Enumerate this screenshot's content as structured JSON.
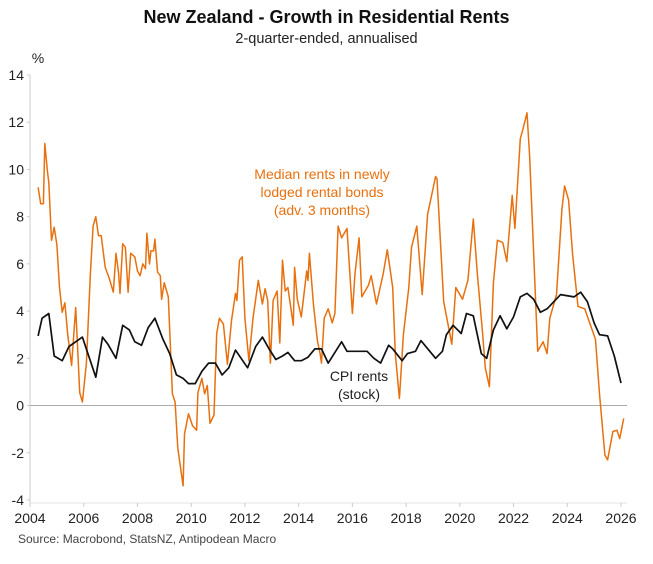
{
  "chart_data": {
    "type": "line",
    "title": "New Zealand - Growth in Residential Rents",
    "subtitle": "2-quarter-ended, annualised",
    "ylabel": "%",
    "xlabel": "",
    "source": "Source: Macrobond, StatsNZ, Antipodean Macro",
    "xlim": [
      2004,
      2026
    ],
    "ylim": [
      -4,
      14
    ],
    "x_ticks": [
      "2004",
      "2006",
      "2008",
      "2010",
      "2012",
      "2014",
      "2016",
      "2018",
      "2020",
      "2022",
      "2024",
      "2026"
    ],
    "y_ticks": [
      "-4",
      "-2",
      "0",
      "2",
      "4",
      "6",
      "8",
      "10",
      "12",
      "14"
    ],
    "grid": false,
    "zero_line": true,
    "colors": {
      "median_rents": "#E8700E",
      "cpi_rents": "#111111",
      "zero_line": "#AAAAAA"
    },
    "annotations": {
      "median_rents": [
        "Median rents in newly",
        "lodged rental bonds",
        "(adv. 3 months)"
      ],
      "cpi_rents": [
        "CPI rents",
        "(stock)"
      ]
    },
    "series": [
      {
        "name": "Median rents in newly lodged rental bonds (adv. 3 months)",
        "x": [
          2004.3,
          2004.4,
          2004.5,
          2004.55,
          2004.65,
          2004.7,
          2004.8,
          2004.9,
          2005.0,
          2005.1,
          2005.2,
          2005.3,
          2005.4,
          2005.55,
          2005.7,
          2005.75,
          2005.85,
          2005.95,
          2006.1,
          2006.25,
          2006.35,
          2006.45,
          2006.55,
          2006.65,
          2006.8,
          2006.95,
          2007.1,
          2007.2,
          2007.3,
          2007.35,
          2007.45,
          2007.55,
          2007.65,
          2007.75,
          2007.9,
          2008.0,
          2008.1,
          2008.2,
          2008.3,
          2008.35,
          2008.45,
          2008.5,
          2008.6,
          2008.65,
          2008.75,
          2008.85,
          2008.9,
          2009.0,
          2009.15,
          2009.3,
          2009.4,
          2009.5,
          2009.7,
          2009.75,
          2009.9,
          2010.05,
          2010.2,
          2010.25,
          2010.4,
          2010.5,
          2010.6,
          2010.7,
          2010.85,
          2010.95,
          2011.05,
          2011.2,
          2011.35,
          2011.5,
          2011.65,
          2011.7,
          2011.8,
          2011.9,
          2012.0,
          2012.15,
          2012.3,
          2012.5,
          2012.65,
          2012.75,
          2012.85,
          2012.95,
          2013.05,
          2013.2,
          2013.3,
          2013.4,
          2013.5,
          2013.6,
          2013.8,
          2013.85,
          2013.95,
          2014.1,
          2014.3,
          2014.35,
          2014.4,
          2014.55,
          2014.7,
          2014.8,
          2014.85,
          2014.95,
          2015.1,
          2015.25,
          2015.35,
          2015.47,
          2015.6,
          2015.8,
          2016.0,
          2016.1,
          2016.25,
          2016.35,
          2016.6,
          2016.7,
          2016.9,
          2017.15,
          2017.3,
          2017.5,
          2017.6,
          2017.75,
          2017.9,
          2018.1,
          2018.2,
          2018.4,
          2018.6,
          2018.8,
          2019.1,
          2019.15,
          2019.4,
          2019.7,
          2019.85,
          2020.1,
          2020.3,
          2020.5,
          2020.65,
          2020.85,
          2020.95,
          2021.1,
          2021.25,
          2021.4,
          2021.6,
          2021.75,
          2021.95,
          2022.05,
          2022.25,
          2022.35,
          2022.5,
          2022.6,
          2022.9,
          2023.1,
          2023.25,
          2023.35,
          2023.6,
          2023.8,
          2023.9,
          2024.05,
          2024.2,
          2024.4,
          2024.65,
          2025.05,
          2025.2,
          2025.4,
          2025.5,
          2025.7,
          2025.85,
          2025.95,
          2026.1
        ],
        "y": [
          9.25,
          8.55,
          8.55,
          11.1,
          9.9,
          9.45,
          7.0,
          7.55,
          6.8,
          5.0,
          3.95,
          4.35,
          3.05,
          1.7,
          4.15,
          3.0,
          0.55,
          0.15,
          1.8,
          5.6,
          7.6,
          8.0,
          7.2,
          7.2,
          5.85,
          5.4,
          4.8,
          6.45,
          5.6,
          4.75,
          6.85,
          6.7,
          4.8,
          6.45,
          6.3,
          5.7,
          5.5,
          6.0,
          5.8,
          7.3,
          6.0,
          6.55,
          6.55,
          7.05,
          5.65,
          5.5,
          4.5,
          5.2,
          4.6,
          0.5,
          0.15,
          -1.8,
          -3.4,
          -1.2,
          -0.35,
          -0.85,
          -1.05,
          0.55,
          1.15,
          0.5,
          0.85,
          -0.75,
          -0.4,
          3.05,
          3.7,
          3.45,
          1.75,
          3.6,
          4.75,
          4.45,
          6.15,
          6.3,
          3.7,
          1.9,
          3.7,
          5.3,
          4.3,
          4.95,
          4.45,
          1.8,
          4.45,
          4.85,
          2.65,
          6.15,
          4.85,
          5.0,
          3.4,
          5.85,
          4.5,
          3.75,
          5.7,
          5.3,
          6.45,
          4.3,
          2.75,
          2.2,
          1.8,
          3.7,
          4.1,
          3.5,
          3.9,
          7.6,
          7.1,
          7.5,
          3.9,
          5.6,
          7.1,
          4.6,
          5.1,
          5.5,
          4.3,
          5.6,
          6.6,
          5.0,
          2.2,
          0.3,
          3.0,
          5.0,
          6.7,
          7.6,
          4.7,
          8.1,
          9.7,
          9.6,
          4.4,
          2.6,
          5.0,
          4.5,
          5.3,
          7.9,
          5.6,
          3.0,
          1.6,
          0.8,
          5.2,
          7.0,
          6.9,
          6.1,
          8.9,
          7.5,
          11.3,
          11.7,
          12.4,
          10.5,
          2.3,
          2.7,
          2.2,
          3.7,
          4.7,
          8.3,
          9.3,
          8.7,
          6.4,
          4.2,
          4.1,
          2.8,
          0.5,
          -2.1,
          -2.3,
          -1.1,
          -1.05,
          -1.4,
          -0.55
        ]
      },
      {
        "name": "CPI rents (stock)",
        "x": [
          2004.3,
          2004.45,
          2004.7,
          2004.9,
          2005.2,
          2005.45,
          2005.95,
          2006.45,
          2006.7,
          2006.9,
          2007.2,
          2007.45,
          2007.7,
          2007.9,
          2008.15,
          2008.4,
          2008.65,
          2008.95,
          2009.2,
          2009.45,
          2009.7,
          2009.9,
          2010.15,
          2010.4,
          2010.65,
          2010.9,
          2011.15,
          2011.4,
          2011.65,
          2012.1,
          2012.4,
          2012.65,
          2012.9,
          2013.15,
          2013.4,
          2013.6,
          2013.85,
          2014.1,
          2014.35,
          2014.6,
          2014.85,
          2015.1,
          2015.6,
          2015.8,
          2016.55,
          2016.8,
          2017.05,
          2017.35,
          2017.5,
          2017.85,
          2018.05,
          2018.35,
          2018.55,
          2019.1,
          2019.35,
          2019.5,
          2019.75,
          2020.05,
          2020.25,
          2020.5,
          2020.8,
          2021.0,
          2021.25,
          2021.5,
          2021.75,
          2022.0,
          2022.25,
          2022.5,
          2022.75,
          2023.0,
          2023.25,
          2023.75,
          2024.25,
          2024.5,
          2024.75,
          2025.0,
          2025.2,
          2025.5,
          2025.75,
          2026.0
        ],
        "y": [
          2.95,
          3.7,
          3.9,
          2.1,
          1.9,
          2.5,
          2.9,
          1.2,
          2.9,
          2.6,
          2.0,
          3.4,
          3.2,
          2.7,
          2.55,
          3.3,
          3.7,
          2.8,
          2.2,
          1.3,
          1.15,
          0.93,
          0.93,
          1.45,
          1.8,
          1.8,
          1.3,
          1.6,
          2.35,
          1.6,
          2.5,
          2.9,
          2.4,
          1.95,
          2.1,
          2.25,
          1.9,
          1.9,
          2.05,
          2.4,
          2.4,
          1.8,
          2.7,
          2.3,
          2.3,
          2.0,
          1.8,
          2.55,
          2.4,
          1.9,
          2.2,
          2.3,
          2.75,
          2.0,
          2.3,
          3.0,
          3.4,
          3.05,
          3.9,
          3.8,
          2.2,
          2.0,
          3.2,
          3.8,
          3.25,
          3.75,
          4.6,
          4.75,
          4.5,
          3.95,
          4.1,
          4.7,
          4.6,
          4.8,
          4.4,
          3.5,
          3.0,
          2.95,
          2.1,
          0.95
        ]
      }
    ]
  }
}
